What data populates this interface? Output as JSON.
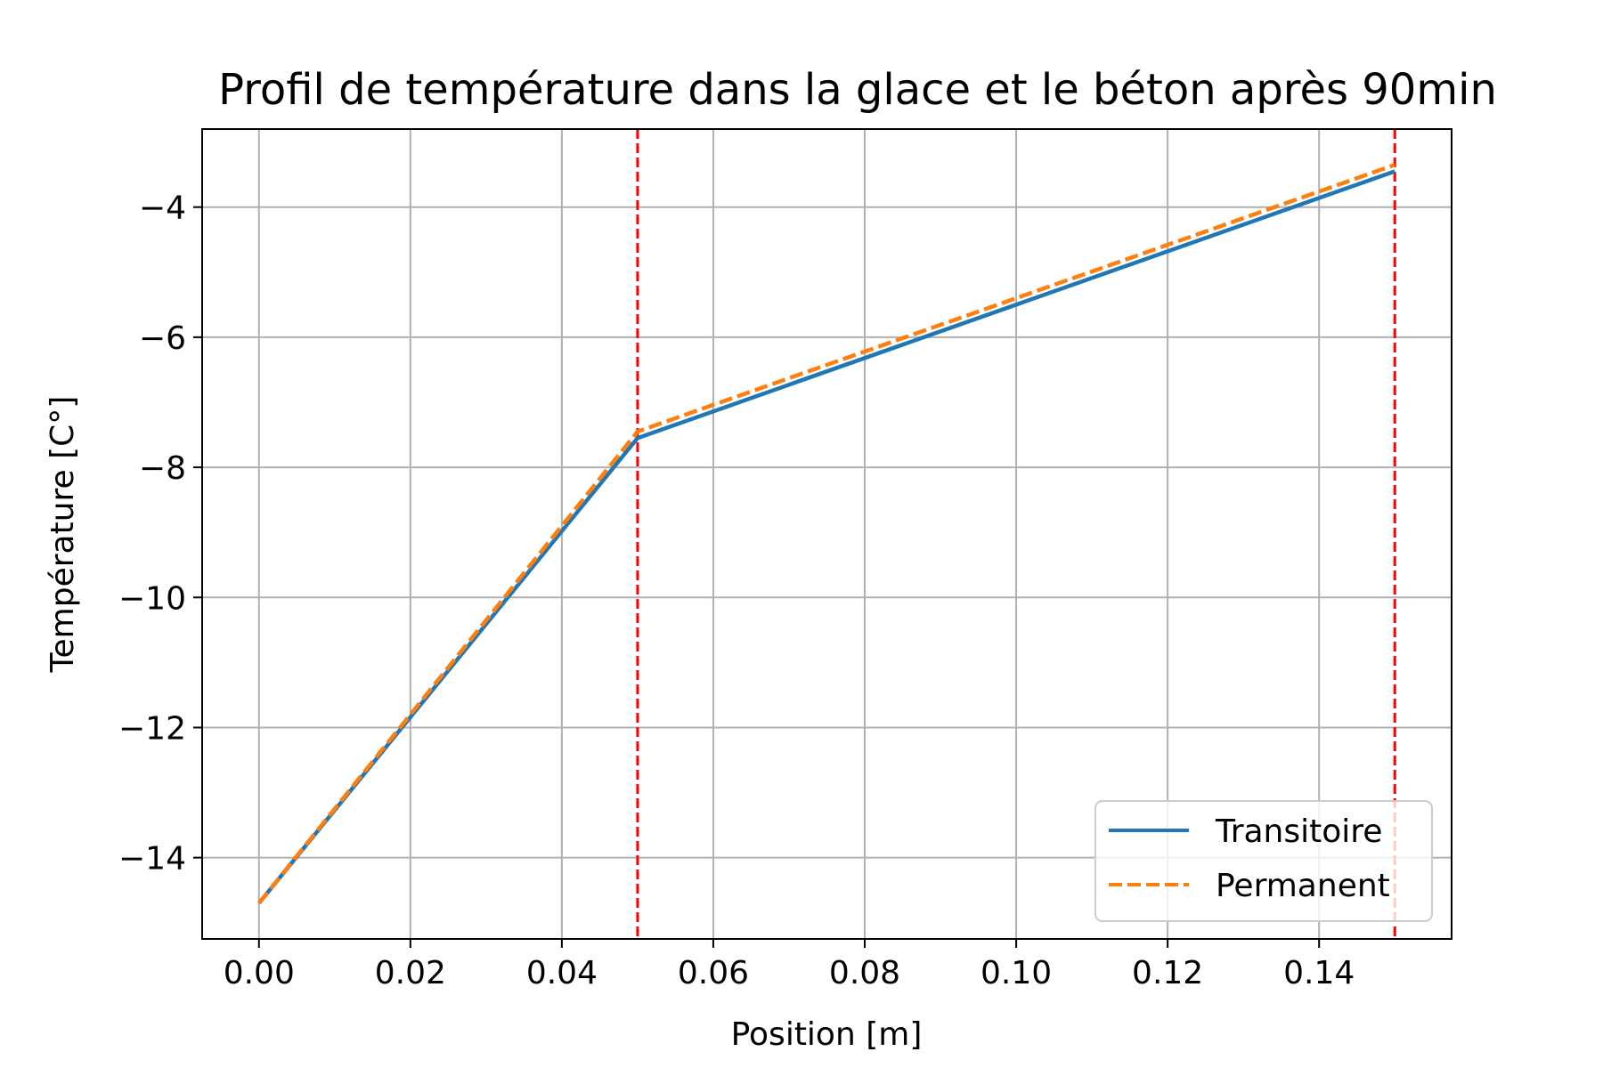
{
  "chart_data": {
    "type": "line",
    "title": "Profil de température dans la glace et le béton après 90min",
    "xlabel": "Position [m]",
    "ylabel": "Température [C°]",
    "xlim": [
      -0.0075,
      0.1575
    ],
    "ylim": [
      -15.25,
      -2.8
    ],
    "xticks": [
      0.0,
      0.02,
      0.04,
      0.06,
      0.08,
      0.1,
      0.12,
      0.14
    ],
    "xtick_labels": [
      "0.00",
      "0.02",
      "0.04",
      "0.06",
      "0.08",
      "0.10",
      "0.12",
      "0.14"
    ],
    "yticks": [
      -14,
      -12,
      -10,
      -8,
      -6,
      -4
    ],
    "ytick_labels": [
      "−14",
      "−12",
      "−10",
      "−8",
      "−6",
      "−4"
    ],
    "grid": true,
    "legend_position": "lower right",
    "series": [
      {
        "name": "Transitoire",
        "color": "#1f77b4",
        "dash": "solid",
        "x": [
          0.0,
          0.05,
          0.15
        ],
        "y": [
          -14.7,
          -7.55,
          -3.45
        ]
      },
      {
        "name": "Permanent",
        "color": "#ff7f0e",
        "dash": "dashed",
        "x": [
          0.0,
          0.05,
          0.15
        ],
        "y": [
          -14.7,
          -7.45,
          -3.35
        ]
      }
    ],
    "vlines": [
      {
        "x": 0.05,
        "color": "#ff0000",
        "dash": "dashed"
      },
      {
        "x": 0.15,
        "color": "#ff0000",
        "dash": "dashed"
      }
    ]
  }
}
